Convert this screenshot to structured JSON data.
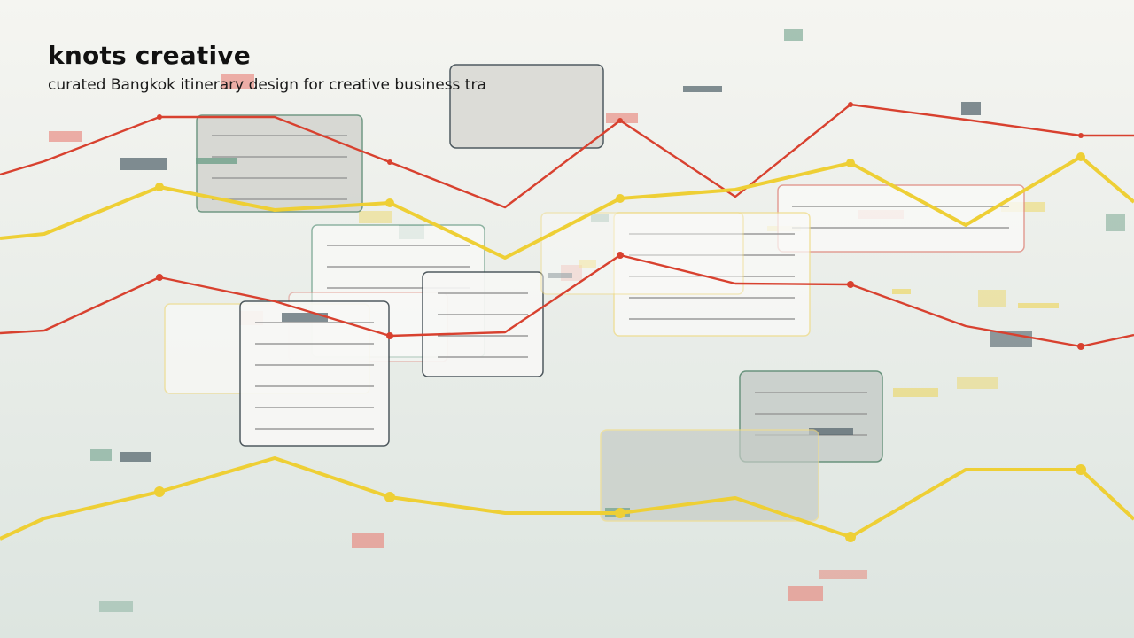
{
  "header": {
    "title": "knots creative",
    "subtitle": "curated Bangkok itinerary design for creative business tra"
  }
}
